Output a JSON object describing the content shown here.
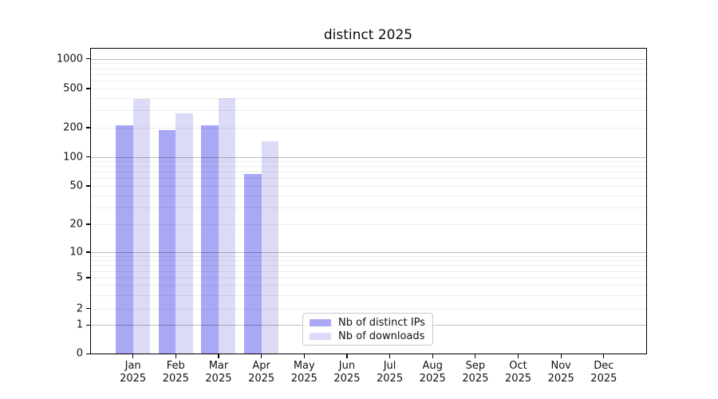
{
  "chart_data": {
    "type": "bar",
    "title": "distinct 2025",
    "x_categories_months": [
      "Jan",
      "Feb",
      "Mar",
      "Apr",
      "May",
      "Jun",
      "Jul",
      "Aug",
      "Sep",
      "Oct",
      "Nov",
      "Dec"
    ],
    "x_year_suffix": "2025",
    "y_ticks": [
      0,
      1,
      2,
      5,
      10,
      20,
      50,
      100,
      200,
      500,
      1000
    ],
    "y_scale": "symlog (linear 0-1, logarithmic above 1)",
    "ylim": [
      0,
      1300
    ],
    "grid": "horizontal major and minor gridlines",
    "legend_position": "lower center",
    "series": [
      {
        "name": "Nb of distinct IPs",
        "color": "#a8a8f5",
        "values": [
          210,
          190,
          210,
          67,
          null,
          null,
          null,
          null,
          null,
          null,
          null,
          null
        ]
      },
      {
        "name": "Nb of downloads",
        "color": "#dbdbf8",
        "values": [
          390,
          280,
          400,
          145,
          null,
          null,
          null,
          null,
          null,
          null,
          null,
          null
        ]
      }
    ]
  }
}
